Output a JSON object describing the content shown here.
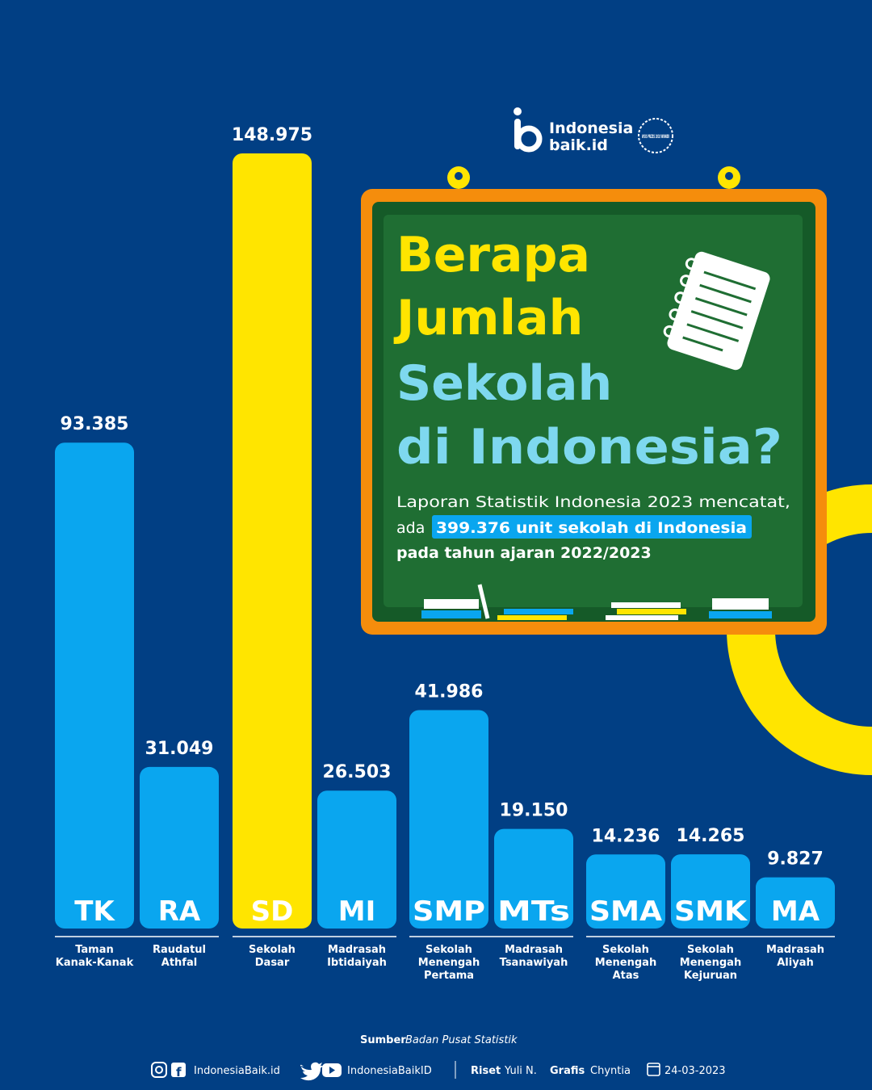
{
  "brand": {
    "logo_text_1": "Indonesia",
    "logo_text_2": "baik.id",
    "award_text": "WSIS PRIZES 2018 WINNER"
  },
  "board": {
    "title_line_1": "Berapa",
    "title_line_2": "Jumlah",
    "title_line_3": "Sekolah",
    "title_line_4": "di Indonesia?",
    "body_line_1": "Laporan Statistik Indonesia 2023 mencatat,",
    "body_line_2_prefix": "ada",
    "body_highlight": "399.376 unit sekolah di Indonesia",
    "body_line_3": "pada tahun ajaran 2022/2023"
  },
  "colors": {
    "background": "#013f84",
    "bar_blue": "#0aa6ef",
    "bar_yellow": "#ffe500",
    "board_frame": "#f58d0c",
    "board_green": "#1f6e33",
    "title_yellow": "#ffe500",
    "title_cyan": "#7ed8ef"
  },
  "chart_data": {
    "type": "bar",
    "categories": [
      "TK",
      "RA",
      "SD",
      "MI",
      "SMP",
      "MTs",
      "SMA",
      "SMK",
      "MA"
    ],
    "full_names": [
      [
        "Taman",
        "Kanak-Kanak"
      ],
      [
        "Raudatul",
        "Athfal"
      ],
      [
        "Sekolah",
        "Dasar"
      ],
      [
        "Madrasah",
        "Ibtidaiyah"
      ],
      [
        "Sekolah",
        "Menengah",
        "Pertama"
      ],
      [
        "Madrasah",
        "Tsanawiyah"
      ],
      [
        "Sekolah",
        "Menengah",
        "Atas"
      ],
      [
        "Sekolah",
        "Menengah",
        "Kejuruan"
      ],
      [
        "Madrasah",
        "Aliyah"
      ]
    ],
    "values": [
      93385,
      31049,
      148975,
      26503,
      41986,
      19150,
      14236,
      14265,
      9827
    ],
    "value_labels": [
      "93.385",
      "31.049",
      "148.975",
      "26.503",
      "41.986",
      "19.150",
      "14.236",
      "14.265",
      "9.827"
    ],
    "highlight_index": 2,
    "ylim": [
      0,
      148975
    ]
  },
  "footer": {
    "source_label": "Sumber",
    "source_value": "Badan Pusat Statistik",
    "social_1": "IndonesiaBaik.id",
    "social_2": "IndonesiaBaikID",
    "riset_label": "Riset",
    "riset_value": "Yuli N.",
    "grafis_label": "Grafis",
    "grafis_value": "Chyntia",
    "date": "24-03-2023"
  }
}
